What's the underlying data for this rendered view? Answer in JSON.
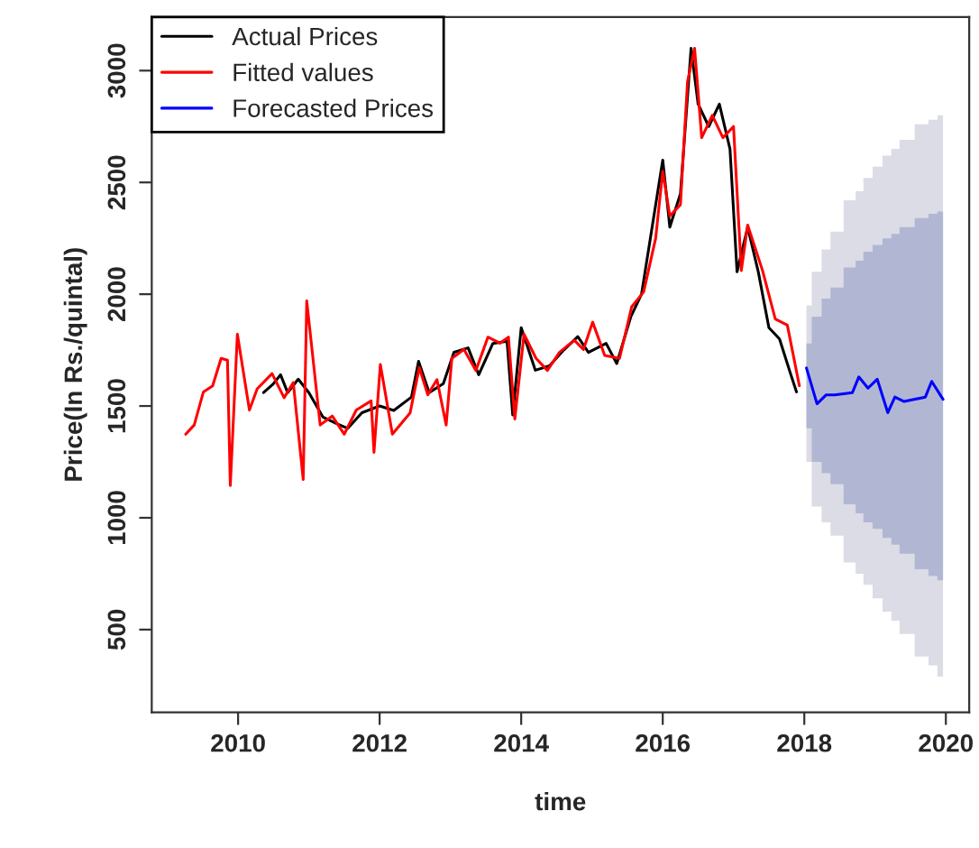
{
  "chart_data": {
    "type": "line",
    "xlabel": "time",
    "ylabel": "Price(In Rs./quintal)",
    "xlim": [
      2008.78,
      2020.33
    ],
    "ylim": [
      130,
      3240
    ],
    "xticks": [
      2010,
      2012,
      2014,
      2016,
      2018,
      2020
    ],
    "yticks": [
      500,
      1000,
      1500,
      2000,
      2500,
      3000
    ],
    "legend": "top left",
    "grid": false,
    "series": [
      {
        "name": "Actual Prices",
        "color": "#000000",
        "x": [
          2010.36,
          2010.5,
          2010.6,
          2010.7,
          2010.85,
          2011.0,
          2011.2,
          2011.4,
          2011.55,
          2011.75,
          2012.0,
          2012.2,
          2012.45,
          2012.55,
          2012.7,
          2012.9,
          2013.05,
          2013.25,
          2013.4,
          2013.6,
          2013.8,
          2013.88,
          2014.0,
          2014.2,
          2014.4,
          2014.6,
          2014.8,
          2014.95,
          2015.2,
          2015.35,
          2015.55,
          2015.7,
          2015.85,
          2016.0,
          2016.1,
          2016.25,
          2016.4,
          2016.5,
          2016.65,
          2016.8,
          2016.95,
          2017.05,
          2017.2,
          2017.35,
          2017.5,
          2017.65,
          2017.8,
          2017.89
        ],
        "values": [
          1560,
          1600,
          1640,
          1560,
          1620,
          1560,
          1450,
          1420,
          1400,
          1470,
          1500,
          1480,
          1540,
          1700,
          1560,
          1600,
          1740,
          1760,
          1640,
          1780,
          1790,
          1460,
          1850,
          1660,
          1680,
          1750,
          1810,
          1740,
          1780,
          1690,
          1900,
          2000,
          2300,
          2600,
          2300,
          2450,
          3100,
          2850,
          2750,
          2850,
          2650,
          2100,
          2300,
          2100,
          1850,
          1800,
          1650,
          1563
        ]
      },
      {
        "name": "Fitted values",
        "color": "#ff0000",
        "x": [
          2009.26,
          2009.38,
          2009.51,
          2009.64,
          2009.76,
          2009.85,
          2009.89,
          2009.99,
          2010.16,
          2010.27,
          2010.48,
          2010.65,
          2010.78,
          2010.92,
          2010.97,
          2011.16,
          2011.33,
          2011.5,
          2011.67,
          2011.88,
          2011.92,
          2012.01,
          2012.18,
          2012.43,
          2012.56,
          2012.68,
          2012.81,
          2012.94,
          2013.02,
          2013.19,
          2013.36,
          2013.53,
          2013.7,
          2013.82,
          2013.91,
          2014.04,
          2014.21,
          2014.37,
          2014.54,
          2014.75,
          2014.88,
          2015.01,
          2015.18,
          2015.39,
          2015.56,
          2015.73,
          2015.9,
          2016.0,
          2016.1,
          2016.25,
          2016.35,
          2016.45,
          2016.55,
          2016.7,
          2016.85,
          2017.0,
          2017.11,
          2017.2,
          2017.41,
          2017.59,
          2017.76,
          2017.93
        ],
        "values": [
          1374,
          1415,
          1563,
          1590,
          1713,
          1705,
          1144,
          1821,
          1482,
          1577,
          1645,
          1537,
          1605,
          1171,
          1970,
          1415,
          1455,
          1374,
          1482,
          1523,
          1293,
          1686,
          1374,
          1469,
          1672,
          1550,
          1618,
          1415,
          1713,
          1753,
          1659,
          1808,
          1781,
          1808,
          1442,
          1821,
          1713,
          1659,
          1740,
          1794,
          1753,
          1875,
          1726,
          1713,
          1943,
          2010,
          2250,
          2550,
          2350,
          2400,
          2950,
          3100,
          2700,
          2800,
          2700,
          2750,
          2106,
          2309,
          2106,
          1889,
          1862,
          1591
        ]
      },
      {
        "color": "#dcdce6",
        "x": [
          2018.03,
          2018.18,
          2018.31,
          2018.43,
          2018.68,
          2018.77,
          2018.9,
          2019.03,
          2019.18,
          2019.28,
          2019.41,
          2019.71,
          2019.8,
          2019.96
        ],
        "values": [
          null,
          null,
          null,
          null,
          null,
          null,
          null,
          null,
          null,
          null,
          null,
          null,
          null,
          null
        ],
        "lower": [
          1250,
          1050,
          980,
          920,
          800,
          750,
          700,
          640,
          580,
          540,
          480,
          380,
          340,
          290
        ],
        "upper": [
          1950,
          2100,
          2200,
          2280,
          2420,
          2460,
          2520,
          2570,
          2620,
          2650,
          2690,
          2760,
          2780,
          2800
        ]
      },
      {
        "color": "#b1b7d3",
        "x": [
          2018.03,
          2018.18,
          2018.31,
          2018.43,
          2018.68,
          2018.77,
          2018.9,
          2019.03,
          2019.18,
          2019.28,
          2019.41,
          2019.71,
          2019.8,
          2019.96
        ],
        "values": [
          null,
          null,
          null,
          null,
          null,
          null,
          null,
          null,
          null,
          null,
          null,
          null,
          null,
          null
        ],
        "lower": [
          1400,
          1250,
          1200,
          1150,
          1060,
          1020,
          980,
          950,
          910,
          880,
          840,
          770,
          740,
          720
        ],
        "upper": [
          1780,
          1900,
          1980,
          2030,
          2120,
          2150,
          2190,
          2220,
          2250,
          2270,
          2300,
          2340,
          2360,
          2370
        ]
      },
      {
        "name": "Forecasted Prices",
        "color": "#0000ff",
        "x": [
          2018.03,
          2018.18,
          2018.31,
          2018.43,
          2018.68,
          2018.77,
          2018.9,
          2019.03,
          2019.18,
          2019.28,
          2019.41,
          2019.71,
          2019.8,
          2019.96
        ],
        "values": [
          1670,
          1510,
          1550,
          1550,
          1560,
          1630,
          1580,
          1620,
          1470,
          1540,
          1520,
          1540,
          1610,
          1530
        ]
      }
    ]
  }
}
